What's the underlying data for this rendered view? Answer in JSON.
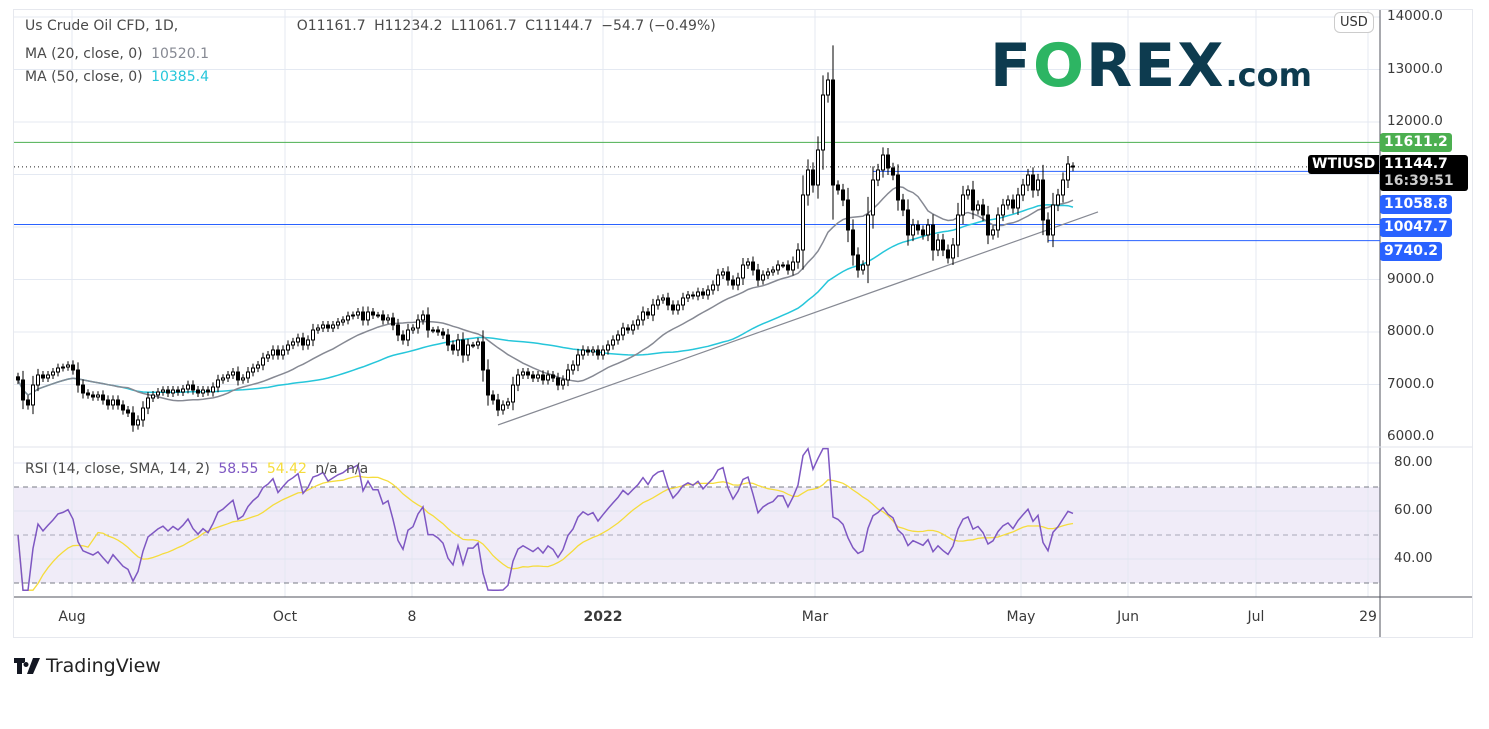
{
  "header": {
    "symbol_title": "Us Crude Oil CFD, 1D,",
    "open": "O11161.7",
    "high": "H11234.2",
    "low": "L11061.7",
    "close": "C11144.7",
    "change": "−54.7 (−0.49%)"
  },
  "indicators": {
    "ma20": {
      "label": "MA (20, close, 0)",
      "value": "10520.1",
      "color": "#868993"
    },
    "ma50": {
      "label": "MA (50, close, 0)",
      "value": "10385.4",
      "color": "#26c6da"
    },
    "rsi": {
      "label": "RSI (14, close, SMA, 14, 2)",
      "value": "58.55",
      "sma_value": "54.42",
      "extra1": "n/a",
      "extra2": "n/a",
      "color": "#7e57c2",
      "sma_color": "#f5dc3c"
    }
  },
  "currency_badge": "USD",
  "logo": {
    "text_f": "F",
    "text_o": "O",
    "text_rex": "REX",
    "text_com": ".com"
  },
  "footer": {
    "brand": "TradingView"
  },
  "price_axis": {
    "ticks": [
      "14000.0",
      "13000.0",
      "12000.0",
      "9000.0",
      "8000.0",
      "7000.0",
      "6000.0"
    ]
  },
  "rsi_axis": {
    "ticks": [
      "80.00",
      "60.00",
      "40.00"
    ]
  },
  "time_axis": {
    "labels": [
      "Aug",
      "Oct",
      "8",
      "2022",
      "Mar",
      "May",
      "Jun",
      "Jul",
      "29"
    ]
  },
  "price_tags": {
    "resistance": {
      "value": "11611.2",
      "color": "#4caf50"
    },
    "symbol": "WTIUSD",
    "last": {
      "value": "11144.7",
      "countdown": "16:39:51",
      "color": "#000000"
    },
    "level1": {
      "value": "11058.8",
      "color": "#2962ff"
    },
    "level2": {
      "value": "10047.7",
      "color": "#2962ff"
    },
    "level3": {
      "value": "9740.2",
      "color": "#2962ff"
    }
  },
  "chart_data": {
    "type": "candlestick",
    "interval": "1D",
    "price_range": [
      6000,
      14000
    ],
    "rsi_range": [
      25,
      85
    ],
    "rsi_bands": [
      30,
      50,
      70
    ],
    "grid": true,
    "closes": [
      7086,
      6705,
      6610,
      6990,
      7181,
      7124,
      7181,
      7238,
      7314,
      7333,
      7371,
      7276,
      6990,
      6838,
      6800,
      6762,
      6800,
      6705,
      6610,
      6705,
      6610,
      6514,
      6457,
      6229,
      6324,
      6552,
      6743,
      6800,
      6857,
      6895,
      6838,
      6895,
      6857,
      6914,
      6990,
      6895,
      6838,
      6895,
      6857,
      6952,
      7086,
      7124,
      7181,
      7238,
      7086,
      7124,
      7238,
      7314,
      7371,
      7505,
      7562,
      7657,
      7562,
      7657,
      7752,
      7810,
      7886,
      7752,
      7848,
      8038,
      8076,
      8133,
      8076,
      8133,
      8190,
      8229,
      8305,
      8324,
      8381,
      8229,
      8381,
      8324,
      8324,
      8229,
      8267,
      8133,
      7943,
      7848,
      8038,
      8076,
      8229,
      8324,
      8038,
      8038,
      8000,
      7943,
      7752,
      7657,
      7848,
      7562,
      7752,
      7752,
      7810,
      7276,
      6800,
      6705,
      6514,
      6610,
      6667,
      6990,
      7181,
      7238,
      7181,
      7124,
      7181,
      7086,
      7181,
      7124,
      6990,
      7086,
      7276,
      7371,
      7562,
      7657,
      7619,
      7657,
      7562,
      7657,
      7752,
      7848,
      7943,
      8076,
      8038,
      8133,
      8229,
      8381,
      8324,
      8514,
      8610,
      8648,
      8514,
      8419,
      8514,
      8648,
      8705,
      8686,
      8762,
      8705,
      8800,
      8895,
      9086,
      9143,
      8990,
      8895,
      9029,
      9276,
      9333,
      9181,
      8990,
      9086,
      9143,
      9181,
      9276,
      9276,
      9181,
      9333,
      9562,
      10610,
      11086,
      10800,
      11467,
      12514,
      12800,
      10800,
      10705,
      10514,
      9943,
      9467,
      9181,
      9276,
      10229,
      10895,
      11086,
      11371,
      11124,
      10990,
      10514,
      10324,
      9848,
      10038,
      9943,
      9848,
      10038,
      9562,
      9752,
      9562,
      9410,
      9657,
      10229,
      10610,
      10705,
      10324,
      10419,
      10229,
      9848,
      9943,
      10229,
      10419,
      10514,
      10362,
      10610,
      10800,
      10990,
      10705,
      10895,
      10133,
      9848,
      10419,
      10610,
      10895,
      11200,
      11144.7
    ],
    "last_candle": {
      "open": 11161.7,
      "high": 11234.2,
      "low": 11061.7,
      "close": 11144.7
    },
    "horizontal_levels": [
      {
        "price": 11611.2,
        "color": "#4caf50",
        "start_bar": 0
      },
      {
        "price": 11058.8,
        "color": "#2962ff",
        "start_bar": 171
      },
      {
        "price": 10047.7,
        "color": "#2962ff",
        "start_bar": 0
      },
      {
        "price": 9740.2,
        "color": "#2962ff",
        "start_bar": 206
      }
    ],
    "last_price_line": 11144.7,
    "trendline": {
      "start_bar": 96,
      "start_price": 6229,
      "end_bar": 216,
      "end_price": 10286,
      "color": "#868993"
    }
  }
}
